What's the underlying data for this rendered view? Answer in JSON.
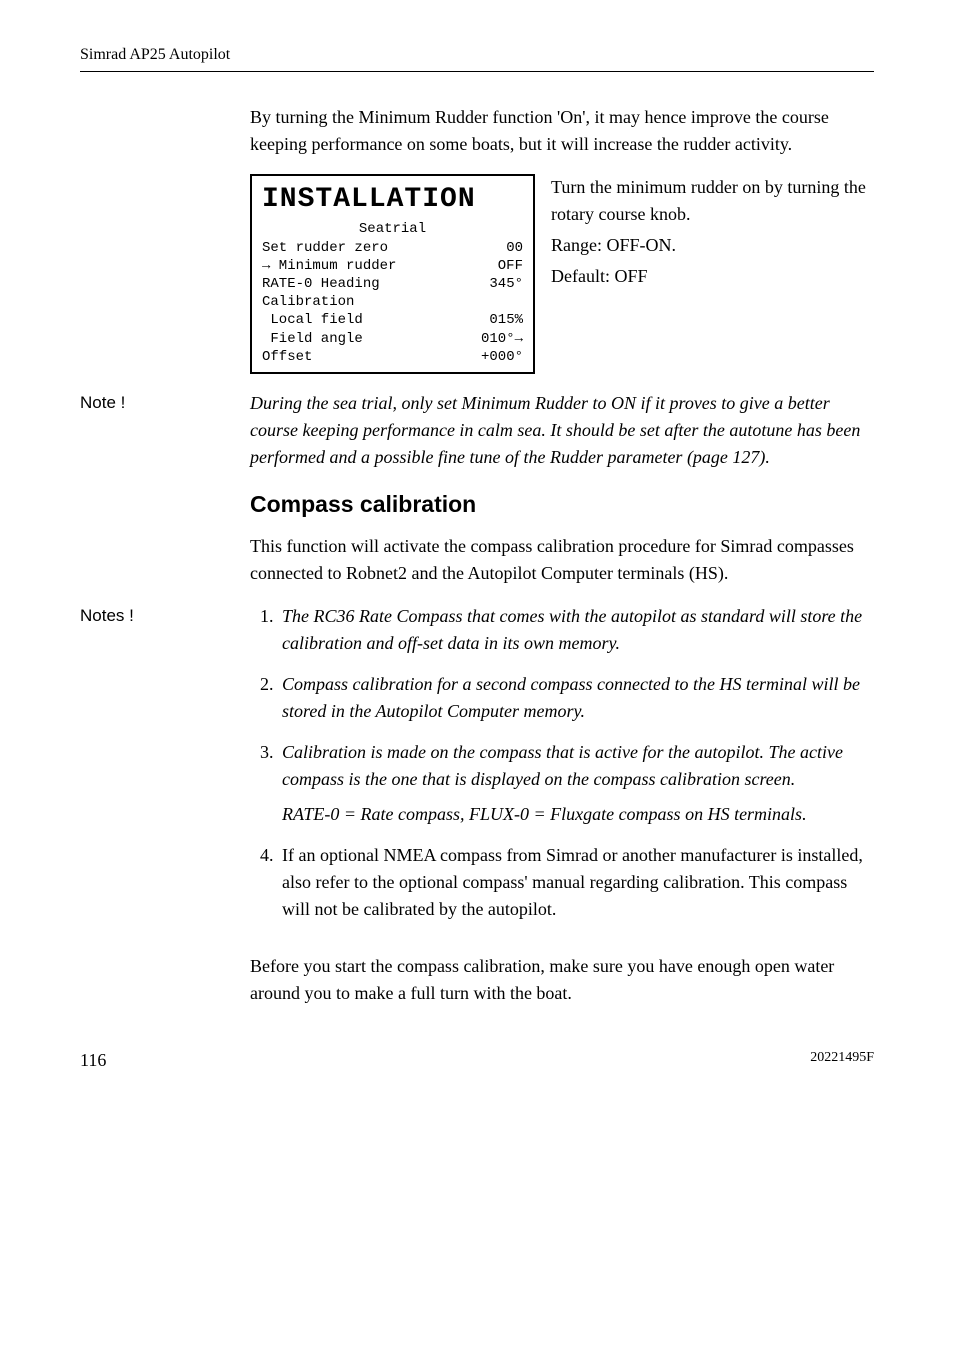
{
  "header": {
    "product": "Simrad AP25 Autopilot"
  },
  "intro_para": "By turning the Minimum Rudder function 'On', it may hence improve the course keeping performance on some boats, but it will increase the rudder activity.",
  "lcd": {
    "title": "INSTALLATION",
    "sub1": "Seatrial",
    "line_set_rudder": "Set rudder zero",
    "val_set_rudder": "00",
    "line_min_rudder": "→ Minimum rudder",
    "val_min_rudder": "OFF",
    "line_rate0": "RATE-0 Heading",
    "val_rate0": "345°",
    "line_calib": "Calibration",
    "line_local": " Local field",
    "val_local": "015%",
    "line_field": " Field angle",
    "val_field": "010°→",
    "line_offset": "Offset",
    "val_offset": "+000°"
  },
  "lcd_side": {
    "p1": "Turn the minimum rudder on by turning the rotary course knob.",
    "p2": "Range: OFF-ON.",
    "p3": "Default: OFF"
  },
  "note1": {
    "label": "Note !",
    "body": "During the sea trial, only set Minimum Rudder to ON if it proves to give a better course keeping performance in calm sea. It should be set after the autotune has been performed and a possible fine tune of the Rudder parameter (page 127)."
  },
  "section": {
    "heading": "Compass calibration",
    "intro": "This function will activate the compass calibration procedure for Simrad compasses connected to Robnet2 and the Autopilot Computer terminals (HS)."
  },
  "notes_label": "Notes !",
  "list": {
    "i1": "The RC36 Rate Compass that comes with the autopilot as standard will store the calibration and off-set data in its own memory.",
    "i2": "Compass calibration for a second compass connected to the HS terminal will be stored in the Autopilot Computer memory.",
    "i3a": "Calibration is made on the compass that is active for the autopilot. The active compass is the one that is displayed on the compass calibration screen.",
    "i3b": "RATE-0 = Rate compass, FLUX-0 = Fluxgate compass on HS terminals.",
    "i4": "If an optional NMEA compass from Simrad or another manufacturer is installed, also refer to the optional compass' manual regarding calibration. This compass will not be calibrated by the autopilot."
  },
  "closing": "Before you start the compass calibration, make sure you have enough open water around you to make a full turn with the boat.",
  "footer": {
    "page": "116",
    "docnum": "20221495F"
  }
}
